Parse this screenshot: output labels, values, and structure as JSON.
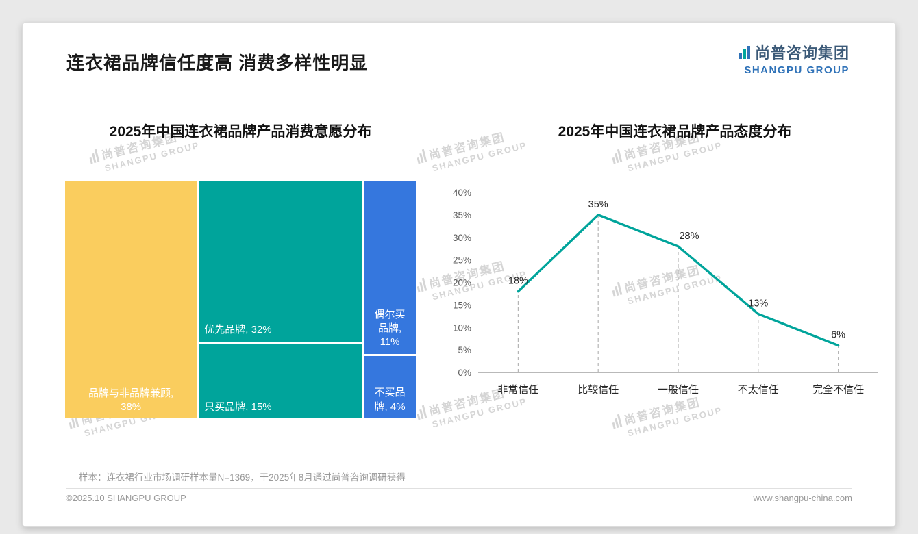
{
  "page": {
    "title": "连衣裙品牌信任度高 消费多样性明显",
    "footnote": "样本：连衣裙行业市场调研样本量N=1369，于2025年8月通过尚普咨询调研获得",
    "footer_left": "©2025.10 SHANGPU GROUP",
    "footer_right": "www.shangpu-china.com"
  },
  "logo": {
    "cn": "尚普咨询集团",
    "en": "SHANGPU GROUP"
  },
  "watermark": {
    "cn": "尚普咨询集团",
    "en": "SHANGPU GROUP"
  },
  "colors": {
    "teal": "#00A49B",
    "yellow": "#FACD5E",
    "blue": "#3577DE",
    "logo_blue": "#2F72B8",
    "logo_dark": "#3C5A78"
  },
  "chart_data": [
    {
      "type": "treemap",
      "title": "2025年中国连衣裙品牌产品消费意愿分布",
      "unit": "%",
      "columns": [
        {
          "segments": [
            {
              "label": "品牌与非品牌兼顾",
              "value": 38,
              "display": "品牌与非品牌兼顾,\n38%",
              "color": "#FACD5E",
              "align": "center"
            }
          ]
        },
        {
          "segments": [
            {
              "label": "优先品牌",
              "value": 32,
              "display": "优先品牌, 32%",
              "color": "#00A49B",
              "align": "left"
            },
            {
              "label": "只买品牌",
              "value": 15,
              "display": "只买品牌, 15%",
              "color": "#00A49B",
              "align": "left"
            }
          ]
        },
        {
          "segments": [
            {
              "label": "偶尔买品牌",
              "value": 11,
              "display": "偶尔买\n品牌,\n11%",
              "color": "#3577DE",
              "align": "center"
            },
            {
              "label": "不买品牌",
              "value": 4,
              "display": "不买品\n牌, 4%",
              "color": "#3577DE",
              "align": "center"
            }
          ]
        }
      ]
    },
    {
      "type": "line",
      "title": "2025年中国连衣裙品牌产品态度分布",
      "categories": [
        "非常信任",
        "比较信任",
        "一般信任",
        "不太信任",
        "完全不信任"
      ],
      "values": [
        18,
        35,
        28,
        13,
        6
      ],
      "point_labels": [
        "18%",
        "35%",
        "28%",
        "13%",
        "6%"
      ],
      "yticks": [
        "0%",
        "5%",
        "10%",
        "15%",
        "20%",
        "25%",
        "30%",
        "35%",
        "40%"
      ],
      "ylim": [
        0,
        40
      ],
      "line_color": "#00A49B",
      "grid": "dashed vertical drop lines at each category",
      "legend": "none"
    }
  ]
}
